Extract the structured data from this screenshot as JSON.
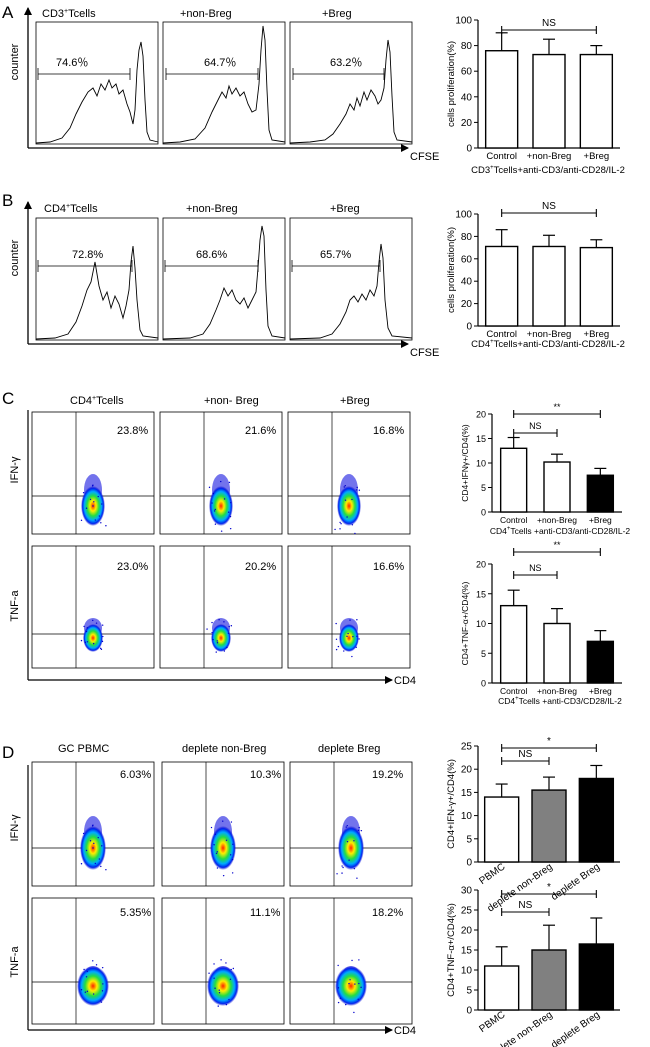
{
  "panels": [
    {
      "letter": "A",
      "ylabel": "counter",
      "xlabel": "CFSE",
      "plots": [
        {
          "title": "CD3+Tcells",
          "title_main": "CD3",
          "title_sup": "+",
          "title_rest": "Tcells",
          "pct": "74.6％"
        },
        {
          "title": "+non-Breg",
          "title_main": "+non-Breg",
          "title_sup": "",
          "title_rest": "",
          "pct": "64.7％"
        },
        {
          "title": "+Breg",
          "title_main": "+Breg",
          "title_sup": "",
          "title_rest": "",
          "pct": "63.2％"
        }
      ]
    },
    {
      "letter": "B",
      "ylabel": "counter",
      "xlabel": "CFSE",
      "plots": [
        {
          "title": "CD4+Tcells",
          "title_main": "CD4",
          "title_sup": "+",
          "title_rest": "Tcells",
          "pct": "72.8%"
        },
        {
          "title": "+non-Breg",
          "title_main": "+non-Breg",
          "title_sup": "",
          "title_rest": "",
          "pct": "68.6%"
        },
        {
          "title": "+Breg",
          "title_main": "+Breg",
          "title_sup": "",
          "title_rest": "",
          "pct": "65.7%"
        }
      ]
    },
    {
      "letter": "C",
      "xlabel": "CD4",
      "titles": [
        {
          "title": "CD4+Tcells",
          "title_main": "CD4",
          "title_sup": "+",
          "title_rest": "Tcells"
        },
        {
          "title": "+non- Breg",
          "title_main": "+non- Breg",
          "title_sup": "",
          "title_rest": ""
        },
        {
          "title": "+Breg",
          "title_main": "+Breg",
          "title_sup": "",
          "title_rest": ""
        }
      ],
      "rows": [
        {
          "ylabel": "IFN-γ",
          "pcts": [
            "23.8%",
            "21.6%",
            "16.8%"
          ]
        },
        {
          "ylabel": "TNF-a",
          "pcts": [
            "23.0%",
            "20.2%",
            "16.6%"
          ]
        }
      ]
    },
    {
      "letter": "D",
      "xlabel": "CD4",
      "titles": [
        {
          "title": "GC PBMC",
          "title_main": "GC PBMC",
          "title_sup": "",
          "title_rest": ""
        },
        {
          "title": "deplete non-Breg",
          "title_main": "deplete non-Breg",
          "title_sup": "",
          "title_rest": ""
        },
        {
          "title": "deplete Breg",
          "title_main": "deplete Breg",
          "title_sup": "",
          "title_rest": ""
        }
      ],
      "rows": [
        {
          "ylabel": "IFN-γ",
          "pcts": [
            "6.03%",
            "10.3%",
            "19.2%"
          ]
        },
        {
          "ylabel": "TNF-a",
          "pcts": [
            "5.35%",
            "11.1%",
            "18.2%"
          ]
        }
      ]
    }
  ],
  "chart_data": [
    {
      "type": "bar",
      "id": "A",
      "categories": [
        "Control",
        "+non-Breg",
        "+Breg"
      ],
      "values": [
        76,
        73,
        73
      ],
      "errors": [
        14,
        12,
        7
      ],
      "colors": [
        "#ffffff",
        "#ffffff",
        "#ffffff"
      ],
      "ylabel": "cells proliferation(%)",
      "ylim": [
        0,
        100
      ],
      "yticks": [
        "0",
        "20",
        "40",
        "60",
        "80",
        "100"
      ],
      "xlabel": "CD3+Tcells+anti-CD3/anti-CD28/IL-2",
      "xlabel_main": "CD3",
      "xlabel_sup": "+",
      "xlabel_rest": "Tcells+anti-CD3/anti-CD28/IL-2",
      "annotations": [
        {
          "from": 0,
          "to": 2,
          "text": "NS"
        }
      ]
    },
    {
      "type": "bar",
      "id": "B",
      "categories": [
        "Control",
        "+non-Breg",
        "+Breg"
      ],
      "values": [
        71,
        71,
        70
      ],
      "errors": [
        15,
        10,
        7
      ],
      "colors": [
        "#ffffff",
        "#ffffff",
        "#ffffff"
      ],
      "ylabel": "cells proliferation(%)",
      "ylim": [
        0,
        100
      ],
      "yticks": [
        "0",
        "20",
        "40",
        "60",
        "80",
        "100"
      ],
      "xlabel": "CD4+Tcells+anti-CD3/anti-CD28/IL-2",
      "xlabel_main": "CD4",
      "xlabel_sup": "+",
      "xlabel_rest": "Tcells+anti-CD3/anti-CD28/IL-2",
      "annotations": [
        {
          "from": 0,
          "to": 2,
          "text": "NS"
        }
      ]
    },
    {
      "type": "bar",
      "id": "C1",
      "categories": [
        "Control",
        "+non-Breg",
        "+Breg"
      ],
      "values": [
        13,
        10.2,
        7.5
      ],
      "errors": [
        2.2,
        1.6,
        1.4
      ],
      "colors": [
        "#ffffff",
        "#ffffff",
        "#000000"
      ],
      "ylabel": "CD4+IFNγ+/CD4(%)",
      "ylim": [
        0,
        20
      ],
      "yticks": [
        "0",
        "5",
        "10",
        "15",
        "20"
      ],
      "xlabel": "CD4+Tcells +anti-CD3/anti-CD28/IL-2",
      "xlabel_main": "CD4",
      "xlabel_sup": "+",
      "xlabel_rest": "Tcells +anti-CD3/anti-CD28/IL-2",
      "annotations": [
        {
          "from": 0,
          "to": 1,
          "text": "NS"
        },
        {
          "from": 0,
          "to": 2,
          "text": "**"
        }
      ]
    },
    {
      "type": "bar",
      "id": "C2",
      "categories": [
        "Control",
        "+non-Breg",
        "+Breg"
      ],
      "values": [
        13,
        10,
        7
      ],
      "errors": [
        2.6,
        2.5,
        1.8
      ],
      "colors": [
        "#ffffff",
        "#ffffff",
        "#000000"
      ],
      "ylabel": "CD4+TNF-α+/CD4(%)",
      "ylim": [
        0,
        20
      ],
      "yticks": [
        "0",
        "5",
        "10",
        "15",
        "20"
      ],
      "xlabel": "CD4+Tcells +anti-CD3/CD28/IL-2",
      "xlabel_main": "CD4",
      "xlabel_sup": "+",
      "xlabel_rest": "Tcells +anti-CD3/CD28/IL-2",
      "annotations": [
        {
          "from": 0,
          "to": 1,
          "text": "NS"
        },
        {
          "from": 0,
          "to": 2,
          "text": "**"
        }
      ]
    },
    {
      "type": "bar",
      "id": "D1",
      "categories": [
        "PBMC",
        "deplete non-Breg",
        "deplete Breg"
      ],
      "values": [
        14,
        15.5,
        18
      ],
      "errors": [
        2.8,
        2.8,
        2.8
      ],
      "colors": [
        "#ffffff",
        "#808080",
        "#000000"
      ],
      "ylabel": "CD4+IFN-γ+/CD4(%)",
      "ylim": [
        0,
        25
      ],
      "yticks": [
        "0",
        "5",
        "10",
        "15",
        "20",
        "25"
      ],
      "annotations": [
        {
          "from": 0,
          "to": 1,
          "text": "NS"
        },
        {
          "from": 0,
          "to": 2,
          "text": "*"
        }
      ]
    },
    {
      "type": "bar",
      "id": "D2",
      "categories": [
        "PBMC",
        "deplete non-Breg",
        "deplete Breg"
      ],
      "values": [
        11,
        15,
        16.5
      ],
      "errors": [
        4.8,
        6.2,
        6.5
      ],
      "colors": [
        "#ffffff",
        "#808080",
        "#000000"
      ],
      "ylabel": "CD4+TNF-α+/CD4(%)",
      "ylim": [
        0,
        30
      ],
      "yticks": [
        "0",
        "5",
        "10",
        "15",
        "20",
        "25",
        "30"
      ],
      "annotations": [
        {
          "from": 0,
          "to": 1,
          "text": "NS"
        },
        {
          "from": 0,
          "to": 2,
          "text": "*"
        }
      ]
    }
  ]
}
